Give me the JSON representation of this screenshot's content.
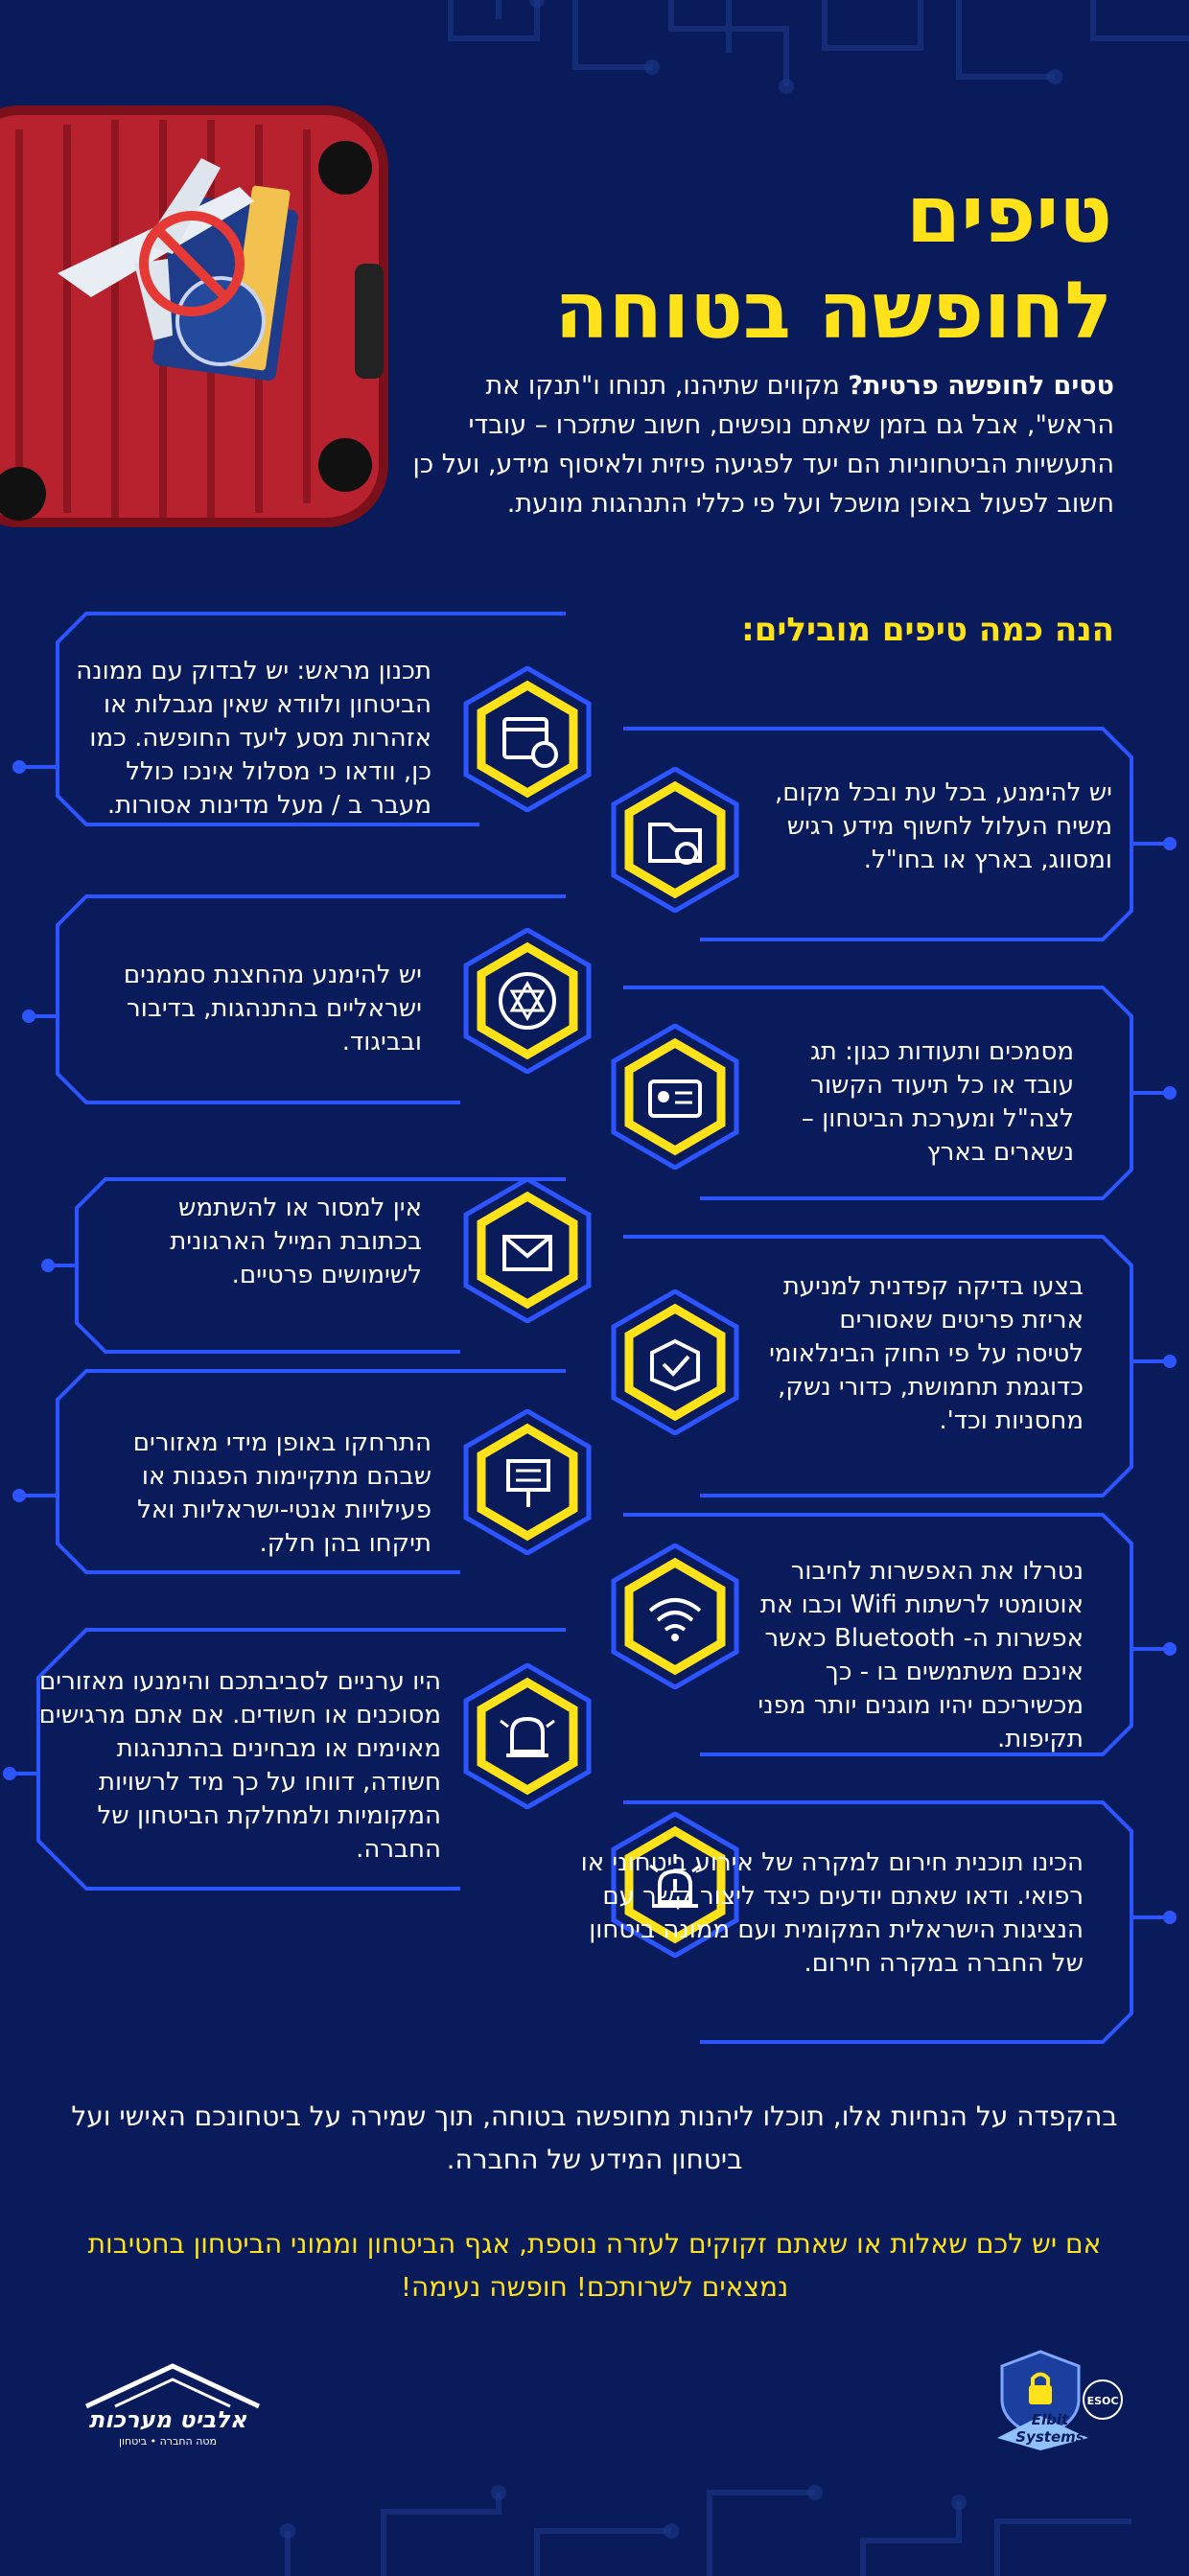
{
  "title": {
    "line1": "טיפים",
    "line2": "לחופשה בטוחה"
  },
  "intro": {
    "lead": "טסים לחופשה פרטית?",
    "body": " מקווים שתיהנו, תנוחו ו\"תנקו את הראש\", אבל גם בזמן שאתם נופשים, חשוב שתזכרו – עובדי התעשיות הביטחוניות הם יעד לפגיעה פיזית ולאיסוף מידע, ועל כן חשוב לפעול באופן מושכל ועל פי כללי התנהגות מונעת."
  },
  "subhead": "הנה כמה טיפים מובילים:",
  "tips": [
    {
      "icon": "calendar-clock-icon",
      "text": "תכנון מראש: יש לבדוק עם ממונה הביטחון ולוודא שאין מגבלות או אזהרות מסע ליעד החופשה. כמו כן, וודאו כי מסלול אינכו כולל מעבר ב / מעל מדינות אסורות."
    },
    {
      "icon": "classified-folder-icon",
      "text": "יש להימנע, בכל עת ובכל מקום, משיח העלול לחשוף מידע רגיש ומסווג, בארץ או בחו\"ל."
    },
    {
      "icon": "star-of-david-icon",
      "text": "יש להימנע מהחצנת סממנים ישראליים בהתנהגות, בדיבור ובביגוד."
    },
    {
      "icon": "id-badge-icon",
      "text": "מסמכים ותעודות כגון: תג עובד או כל תיעוד הקשור לצה\"ל ומערכת הביטחון – נשארים בארץ"
    },
    {
      "icon": "email-icon",
      "text": "אין למסור או להשתמש בכתובת המייל הארגונית לשימושים פרטיים."
    },
    {
      "icon": "package-check-icon",
      "text": "בצעו בדיקה קפדנית למניעת אריזת פריטים שאסורים לטיסה על פי החוק הבינלאומי כדוגמת תחמושת, כדורי נשק, מחסניות וכד'."
    },
    {
      "icon": "protest-sign-icon",
      "text": "התרחקו באופן מידי מאזורים שבהם מתקיימות הפגנות או פעילויות אנטי-ישראליות ואל תיקחו בהן חלק."
    },
    {
      "icon": "wifi-icon",
      "text": "נטרלו את האפשרות לחיבור אוטומטי לרשתות Wifi וכבו את אפשרות ה- Bluetooth כאשר אינכם משתמשים בו - כך מכשיריכם יהיו מוגנים יותר מפני תקיפות."
    },
    {
      "icon": "alarm-bell-icon",
      "text": "היו ערניים לסביבתכם והימנעו מאזורים מסוכנים או חשודים. אם אתם מרגישים מאוימים או מבחינים בהתנהגות חשודה, דווחו על כך מיד לרשויות המקומיות ולמחלקת הביטחון של החברה."
    },
    {
      "icon": "emergency-siren-icon",
      "text": "הכינו תוכנית חירום למקרה של אירוע ביטחוני או רפואי. ודאו שאתם יודעים כיצד ליצור קשר עם הנציגות הישראלית המקומית ועם ממונה ביטחון של החברה במקרה חירום."
    }
  ],
  "footer": {
    "summary": "בהקפדה על הנחיות אלו, תוכלו ליהנות מחופשה בטוחה, תוך שמירה על ביטחונכם האישי ועל ביטחון המידע של החברה.",
    "contact": "אם יש לכם שאלות או שאתם זקוקים לעזרה נוספת, אגף הביטחון וממוני הביטחון בחטיבות נמצאים לשרותכם! חופשה נעימה!"
  },
  "logos": {
    "left": {
      "name": "אלביט מערכות",
      "tagline": "מטה החברה • ביטחון"
    },
    "right": {
      "name": "Elbit Systems",
      "badge": "ESOC"
    }
  },
  "colors": {
    "background": "#0a1b5c",
    "accent": "#ffe21a",
    "line": "#2d55ff",
    "text": "#ffffff"
  }
}
